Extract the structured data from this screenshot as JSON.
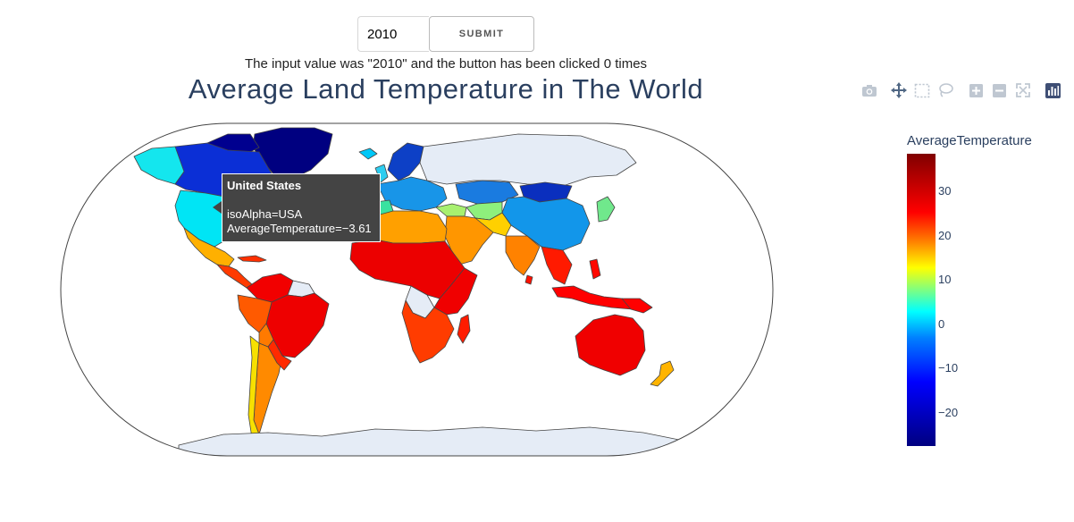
{
  "input": {
    "value": "2010"
  },
  "submit_label": "SUBMIT",
  "output_text": "The input value was \"2010\" and the button has been clicked 0 times",
  "map": {
    "title": "Average Land Temperature in The World",
    "colorbar": {
      "title": "AverageTemperature",
      "ticks": [
        "30",
        "20",
        "10",
        "0",
        "−10",
        "−20"
      ],
      "range": [
        -28,
        38
      ],
      "colorscale": [
        "#000080",
        "#0000ff",
        "#0080ff",
        "#00ffff",
        "#ffff00",
        "#ff8000",
        "#ff0000",
        "#800000"
      ]
    },
    "land_fill_no_data": "#e5ecf6"
  },
  "hover": {
    "title": "United States",
    "iso_line": "isoAlpha=USA",
    "value_line": "AverageTemperature=−3.61"
  },
  "modebar": [
    "camera-icon",
    "pan-icon",
    "box-select-icon",
    "lasso-icon",
    "zoom-in-icon",
    "zoom-out-icon",
    "autoscale-icon",
    "plotly-logo-icon"
  ]
}
